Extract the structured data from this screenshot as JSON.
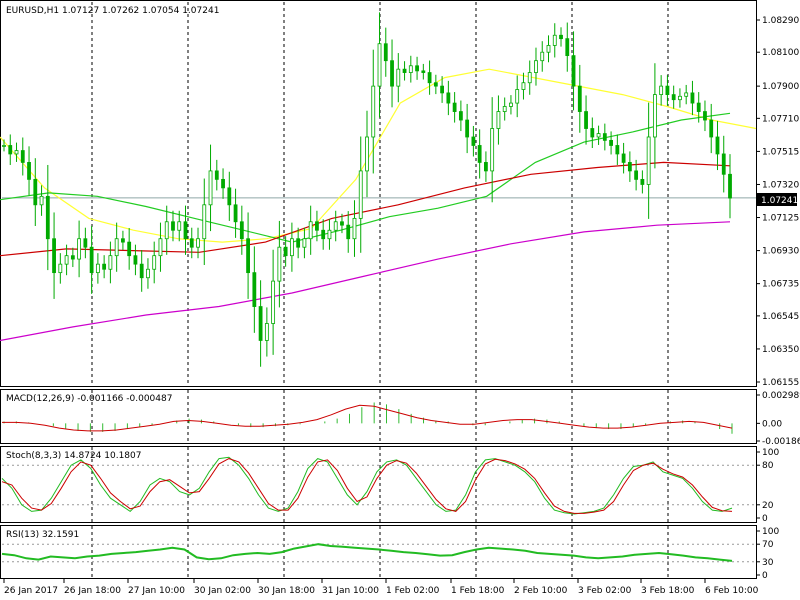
{
  "colors": {
    "background": "#ffffff",
    "frame": "#000000",
    "grid_vertical": "#000000",
    "candle": "#00aa00",
    "ma_yellow": "#ffff33",
    "ma_green": "#22cc22",
    "ma_red": "#cc0000",
    "ma_magenta": "#cc00cc",
    "price_line": "#8fa8a8",
    "macd_hist": "#33bb33",
    "macd_signal": "#cc0000",
    "stoch_main": "#22bb22",
    "stoch_signal": "#cc0000",
    "rsi_line": "#22bb22",
    "level_line": "#999999"
  },
  "chart_data": [
    {
      "type": "candlestick",
      "title": "EURUSD,H1  1.07127 1.07262 1.07054 1.07241",
      "symbol": "EURUSD",
      "timeframe": "H1",
      "ohlc_last": {
        "open": 1.07127,
        "high": 1.07262,
        "low": 1.07054,
        "close": 1.07241
      },
      "ylim": [
        1.06155,
        1.0829
      ],
      "y_ticks": [
        "1.08290",
        "1.08100",
        "1.07900",
        "1.07710",
        "1.07515",
        "1.07320",
        "1.07125",
        "1.06930",
        "1.06735",
        "1.06545",
        "1.06350",
        "1.06155"
      ],
      "current_price_label": "1.07241",
      "x_tick_labels": [
        "26 Jan 2017",
        "26 Jan 18:00",
        "27 Jan 10:00",
        "30 Jan 02:00",
        "30 Jan 18:00",
        "31 Jan 10:00",
        "1 Feb 02:00",
        "1 Feb 18:00",
        "2 Feb 10:00",
        "3 Feb 02:00",
        "3 Feb 18:00",
        "6 Feb 10:00"
      ],
      "grid": "vertical dashed",
      "closes": [
        1.0755,
        1.075,
        1.0752,
        1.0745,
        1.0735,
        1.072,
        1.0725,
        1.07,
        1.068,
        1.0685,
        1.069,
        1.0688,
        1.07,
        1.0695,
        1.068,
        1.0685,
        1.0682,
        1.069,
        1.07,
        1.0698,
        1.069,
        1.0685,
        1.0677,
        1.0682,
        1.069,
        1.07,
        1.071,
        1.0705,
        1.071,
        1.07,
        1.0695,
        1.07,
        1.072,
        1.074,
        1.0735,
        1.073,
        1.072,
        1.071,
        1.07,
        1.068,
        1.066,
        1.064,
        1.065,
        1.0675,
        1.0695,
        1.069,
        1.07,
        1.0695,
        1.07,
        1.071,
        1.0705,
        1.07,
        1.0705,
        1.071,
        1.0708,
        1.07,
        1.0712,
        1.074,
        1.076,
        1.079,
        1.0815,
        1.0805,
        1.079,
        1.08,
        1.0798,
        1.0802,
        1.0799,
        1.0798,
        1.0792,
        1.079,
        1.0786,
        1.078,
        1.0775,
        1.077,
        1.076,
        1.0755,
        1.0745,
        1.074,
        1.0765,
        1.0775,
        1.0778,
        1.078,
        1.0788,
        1.0792,
        1.0798,
        1.0805,
        1.081,
        1.0814,
        1.082,
        1.0818,
        1.0808,
        1.079,
        1.0775,
        1.0765,
        1.076,
        1.0762,
        1.0758,
        1.0755,
        1.075,
        1.0745,
        1.074,
        1.0735,
        1.0732,
        1.076,
        1.0785,
        1.079,
        1.0785,
        1.0782,
        1.0784,
        1.0786,
        1.078,
        1.0775,
        1.077,
        1.076,
        1.075,
        1.0738,
        1.0724
      ],
      "series": [
        {
          "name": "",
          "role": "ma_fast",
          "values": [
            1.076,
            1.073,
            1.0712,
            1.0705,
            1.07,
            1.0698,
            1.07,
            1.0706,
            1.0735,
            1.078,
            1.0795,
            1.08,
            1.0795,
            1.079,
            1.0785,
            1.0778,
            1.077,
            1.0765
          ]
        },
        {
          "name": "",
          "role": "ma_mid",
          "values": [
            1.0723,
            1.0727,
            1.0725,
            1.0719,
            1.0712,
            1.0705,
            1.0698,
            1.0705,
            1.0713,
            1.0718,
            1.0725,
            1.0745,
            1.0757,
            1.0763,
            1.077,
            1.0774
          ]
        },
        {
          "name": "",
          "role": "ma_slow",
          "values": [
            1.069,
            1.0694,
            1.0693,
            1.0692,
            1.0698,
            1.0712,
            1.072,
            1.073,
            1.0738,
            1.0742,
            1.0745,
            1.0743
          ]
        },
        {
          "name": "",
          "role": "ma_long",
          "values": [
            1.064,
            1.0648,
            1.0655,
            1.066,
            1.0668,
            1.0678,
            1.0688,
            1.0697,
            1.0704,
            1.0708,
            1.071
          ]
        }
      ]
    },
    {
      "type": "histogram",
      "title": "MACD(12,26,9) -0.001166 -0.000487",
      "y_ticks": [
        "0.002989",
        "0.00",
        "-0.001862"
      ],
      "ylim": [
        -0.001862,
        0.002989
      ],
      "histogram": [
        0.0002,
        0.0002,
        0.0001,
        0.0,
        -0.0003,
        -0.0006,
        -0.0008,
        -0.0009,
        -0.0009,
        -0.0008,
        -0.0006,
        -0.0004,
        -0.0002,
        0.0,
        0.0003,
        0.0005,
        0.0004,
        0.0002,
        0.0,
        -0.0002,
        -0.0004,
        -0.0004,
        -0.0003,
        -0.0002,
        -0.0001,
        0.0,
        0.0002,
        0.0005,
        0.001,
        0.0017,
        0.0022,
        0.002,
        0.0015,
        0.001,
        0.0006,
        0.0003,
        0.0002,
        0.0,
        -0.0002,
        -0.0002,
        0.0,
        0.0002,
        0.0004,
        0.0005,
        0.0004,
        0.0002,
        0.0,
        -0.0003,
        -0.0005,
        -0.0006,
        -0.0006,
        -0.0004,
        -0.0002,
        0.0,
        0.0002,
        0.0003,
        0.0002,
        0.0,
        -0.0006,
        -0.0011
      ],
      "signal": [
        0.0001,
        0.0001,
        0.0,
        -0.0002,
        -0.0005,
        -0.0007,
        -0.0008,
        -0.0008,
        -0.0007,
        -0.0005,
        -0.0003,
        -0.0001,
        0.0002,
        0.0003,
        0.0002,
        0.0,
        -0.0002,
        -0.0003,
        -0.0003,
        -0.0002,
        -0.0001,
        0.0001,
        0.0004,
        0.0009,
        0.0015,
        0.0019,
        0.0018,
        0.0014,
        0.001,
        0.0006,
        0.0003,
        0.0001,
        -0.0001,
        -0.0001,
        0.0001,
        0.0003,
        0.0004,
        0.0004,
        0.0002,
        0.0,
        -0.0002,
        -0.0004,
        -0.0005,
        -0.0005,
        -0.0004,
        -0.0002,
        0.0,
        0.0001,
        0.0002,
        0.0001,
        -0.0002,
        -0.0005
      ]
    },
    {
      "type": "line",
      "title": "Stoch(8,3,3) 14.8724 10.1807",
      "y_ticks": [
        "100",
        "80",
        "20",
        "0"
      ],
      "ylim": [
        0,
        100
      ],
      "series": [
        {
          "name": "",
          "role": "main",
          "values": [
            60,
            45,
            20,
            10,
            12,
            30,
            55,
            80,
            88,
            75,
            50,
            30,
            20,
            10,
            25,
            50,
            60,
            55,
            40,
            35,
            45,
            70,
            90,
            92,
            80,
            60,
            35,
            15,
            10,
            15,
            40,
            75,
            90,
            85,
            60,
            35,
            20,
            40,
            70,
            85,
            88,
            80,
            60,
            40,
            20,
            10,
            12,
            35,
            70,
            88,
            90,
            85,
            80,
            70,
            55,
            30,
            12,
            8,
            6,
            8,
            10,
            15,
            35,
            60,
            78,
            80,
            85,
            70,
            65,
            60,
            45,
            25,
            12,
            10,
            15
          ]
        },
        {
          "name": "",
          "role": "signal",
          "values": [
            55,
            50,
            30,
            15,
            12,
            22,
            45,
            70,
            85,
            80,
            60,
            38,
            25,
            14,
            18,
            40,
            55,
            58,
            48,
            38,
            40,
            60,
            82,
            90,
            85,
            68,
            45,
            22,
            12,
            12,
            30,
            62,
            85,
            88,
            72,
            45,
            25,
            32,
            60,
            80,
            87,
            83,
            68,
            48,
            28,
            14,
            10,
            25,
            58,
            82,
            89,
            87,
            82,
            74,
            60,
            38,
            18,
            10,
            7,
            7,
            9,
            12,
            25,
            50,
            72,
            80,
            83,
            74,
            67,
            62,
            50,
            32,
            16,
            11,
            10
          ]
        }
      ]
    },
    {
      "type": "line",
      "title": "RSI(13) 32.1591",
      "y_ticks": [
        "100",
        "70",
        "30",
        "0"
      ],
      "ylim": [
        0,
        100
      ],
      "series": [
        {
          "name": "",
          "role": "rsi",
          "values": [
            48,
            45,
            38,
            35,
            42,
            40,
            38,
            42,
            44,
            48,
            50,
            52,
            55,
            58,
            62,
            58,
            40,
            36,
            38,
            45,
            48,
            50,
            48,
            52,
            60,
            65,
            70,
            66,
            64,
            62,
            60,
            58,
            55,
            52,
            50,
            47,
            44,
            45,
            52,
            58,
            62,
            60,
            58,
            55,
            50,
            48,
            46,
            44,
            40,
            38,
            40,
            42,
            46,
            48,
            50,
            47,
            44,
            40,
            38,
            35,
            32
          ]
        }
      ]
    }
  ]
}
